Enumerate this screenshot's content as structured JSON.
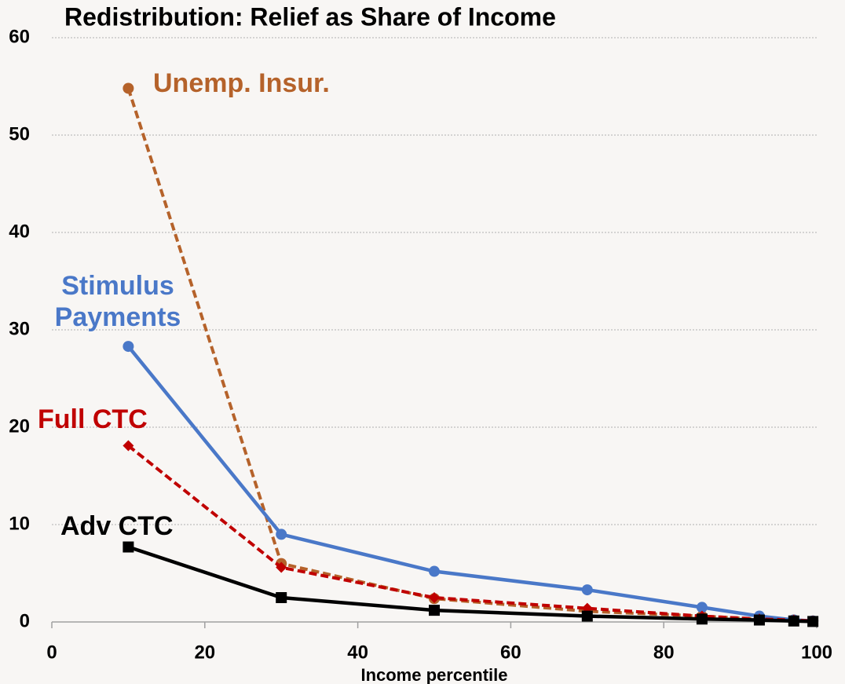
{
  "chart_data": {
    "type": "line",
    "title": "Redistribution: Relief as Share of Income",
    "x_label": "Income percentile",
    "x": [
      10,
      30,
      50,
      70,
      85,
      92.5,
      97,
      99.5
    ],
    "series": [
      {
        "name": "Unemp. Insur.",
        "color": "#b5622a",
        "dash": true,
        "marker": "circle",
        "values": [
          54.8,
          6.0,
          2.4,
          1.1,
          0.6,
          0.3,
          0.2,
          0.1
        ]
      },
      {
        "name": "Stimulus Payments",
        "color": "#4a78c8",
        "dash": false,
        "marker": "circle",
        "values": [
          28.3,
          9.0,
          5.2,
          3.3,
          1.5,
          0.6,
          0.2,
          0.1
        ]
      },
      {
        "name": "Full CTC",
        "color": "#c00000",
        "dash": true,
        "marker": "diamond",
        "values": [
          18.1,
          5.6,
          2.5,
          1.4,
          0.6,
          0.3,
          0.2,
          0.1
        ]
      },
      {
        "name": "Adv CTC",
        "color": "#000000",
        "dash": false,
        "marker": "square",
        "values": [
          7.7,
          2.5,
          1.2,
          0.6,
          0.3,
          0.2,
          0.1,
          0.05
        ]
      }
    ],
    "xlim": [
      0,
      100
    ],
    "xticks": [
      0,
      20,
      40,
      60,
      80,
      100
    ],
    "ylim": [
      0,
      60
    ],
    "yticks": [
      0,
      10,
      20,
      30,
      40,
      50,
      60
    ],
    "grid": true
  }
}
